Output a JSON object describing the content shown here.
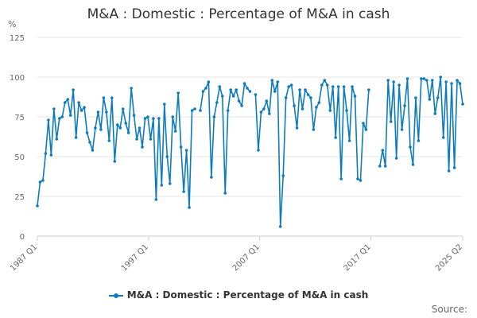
{
  "colors": {
    "series": "#0e7bbd",
    "grid": "#e6e6e6",
    "axis": "#cccccc"
  },
  "unit_label": "%",
  "legend_label": "M&A : Domestic : Percentage of M&A in cash",
  "source_label": "Source:",
  "chart_data": {
    "type": "line",
    "title": "M&A : Domestic : Percentage of M&A in cash",
    "xlabel": "",
    "ylabel": "%",
    "ylim": [
      0,
      125
    ],
    "yticks": [
      0,
      25,
      50,
      75,
      100,
      125
    ],
    "x_tick_labels": [
      "1987 Q1",
      "1997 Q1",
      "2007 Q1",
      "2017 Q1",
      "2025 Q2"
    ],
    "x_start": "1987 Q1",
    "x_end": "2025 Q2",
    "grid": true,
    "legend_position": "bottom",
    "series": [
      {
        "name": "M&A : Domestic : Percentage of M&A in cash",
        "values": [
          19,
          34,
          35,
          52,
          73,
          51,
          80,
          61,
          74,
          75,
          84,
          86,
          76,
          92,
          62,
          84,
          79,
          81,
          65,
          59,
          54,
          68,
          78,
          67,
          87,
          78,
          60,
          87,
          47,
          70,
          68,
          80,
          71,
          65,
          93,
          76,
          61,
          68,
          56,
          74,
          75,
          61,
          74,
          23,
          74,
          32,
          83,
          50,
          33,
          75,
          66,
          90,
          56,
          28,
          54,
          18,
          79,
          80,
          null,
          79,
          91,
          93,
          97,
          37,
          75,
          84,
          94,
          88,
          27,
          79,
          92,
          88,
          92,
          85,
          82,
          96,
          93,
          91,
          null,
          89,
          54,
          78,
          80,
          85,
          77,
          98,
          91,
          97,
          6,
          38,
          87,
          94,
          95,
          82,
          68,
          92,
          80,
          92,
          89,
          87,
          67,
          81,
          84,
          95,
          98,
          95,
          79,
          94,
          62,
          94,
          36,
          94,
          79,
          60,
          94,
          88,
          36,
          35,
          71,
          67,
          92,
          null,
          null,
          null,
          44,
          54,
          44,
          98,
          72,
          97,
          49,
          95,
          67,
          82,
          99,
          56,
          45,
          87,
          60,
          99,
          99,
          98,
          86,
          98,
          77,
          87,
          100,
          62,
          97,
          41,
          96,
          43,
          98,
          96,
          83
        ]
      }
    ]
  }
}
